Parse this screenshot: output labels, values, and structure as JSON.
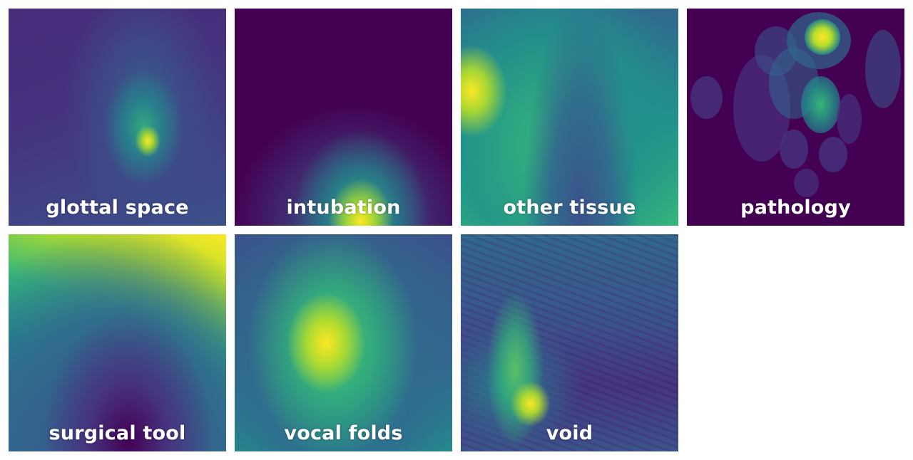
{
  "tiles": [
    {
      "id": "t1",
      "label": "glottal space"
    },
    {
      "id": "t2",
      "label": "intubation"
    },
    {
      "id": "t3",
      "label": "other tissue"
    },
    {
      "id": "t4",
      "label": "pathology"
    },
    {
      "id": "t5",
      "label": "surgical tool"
    },
    {
      "id": "t6",
      "label": "vocal folds"
    },
    {
      "id": "t7",
      "label": "void"
    }
  ],
  "colormap": [
    "#440154",
    "#3b528b",
    "#21918c",
    "#5ec962",
    "#fde725"
  ]
}
